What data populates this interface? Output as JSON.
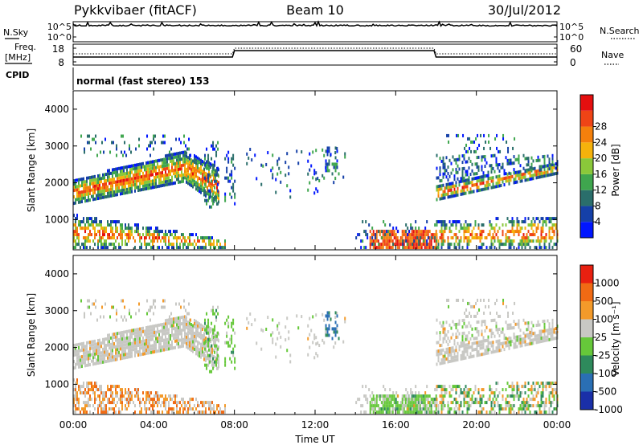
{
  "header": {
    "station": "Pykkvibaer (fitACF)",
    "beam": "Beam 10",
    "date": "30/Jul/2012"
  },
  "top_panels": {
    "nsky_label": "N.Sky",
    "nsearch_label": "N.Search",
    "noise_ticks": [
      "10^5",
      "10^0"
    ],
    "freq_label_1": "Freq.",
    "freq_label_2": "[MHz]",
    "freq_ticks": [
      "18",
      "8"
    ],
    "nave_label": "Nave",
    "nave_ticks": [
      "60",
      "0"
    ],
    "cpid_label": "CPID",
    "cpid_text": "normal (fast stereo) 153"
  },
  "chart_data": [
    {
      "type": "heatmap",
      "title": "",
      "ylabel": "Slant Range [km]",
      "ylim": [
        180,
        4500
      ],
      "y_ticks": [
        1000,
        2000,
        3000,
        4000
      ],
      "xlim": [
        "00:00",
        "24:00"
      ],
      "colorbar": {
        "label": "Power [dB]",
        "ticks": [
          "4",
          "8",
          "12",
          "16",
          "20",
          "24",
          "28"
        ],
        "colors": [
          "#0016ff",
          "#1540a8",
          "#2a6e6b",
          "#3fa64e",
          "#8ac83a",
          "#f5b20c",
          "#f4800c",
          "#ef4416",
          "#e50f0f"
        ]
      }
    },
    {
      "type": "heatmap",
      "title": "",
      "xlabel": "Time UT",
      "ylabel": "Slant Range [km]",
      "ylim": [
        180,
        4500
      ],
      "y_ticks": [
        1000,
        2000,
        3000,
        4000
      ],
      "x_ticks": [
        "00:00",
        "04:00",
        "08:00",
        "12:00",
        "16:00",
        "20:00",
        "00:00"
      ],
      "colorbar": {
        "label": "Velocity [m s⁻¹]",
        "ticks": [
          "1000",
          "500",
          "100",
          "25",
          "-25",
          "-100",
          "-500",
          "-1000"
        ],
        "colors": [
          "#1a2fa8",
          "#2a6fb4",
          "#2e8a5c",
          "#66c83a",
          "#c8c8c4",
          "#f39a2a",
          "#f06a14",
          "#e82010"
        ]
      }
    }
  ]
}
